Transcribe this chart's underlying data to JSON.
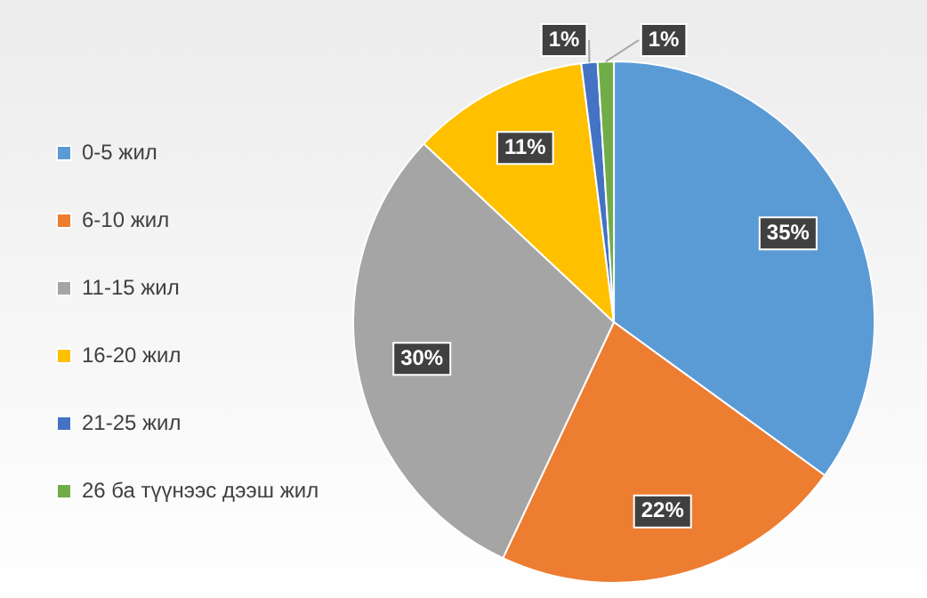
{
  "chart_data": {
    "type": "pie",
    "categories": [
      "0-5 жил",
      "6-10 жил",
      "11-15 жил",
      "16-20 жил",
      "21-25 жил",
      "26 ба түүнээс дээш жил"
    ],
    "values": [
      35,
      22,
      30,
      11,
      1,
      1
    ],
    "value_labels": [
      "35%",
      "22%",
      "30%",
      "11%",
      "1%",
      "1%"
    ],
    "colors": [
      "#5b9bd5",
      "#ed7d31",
      "#a5a5a5",
      "#ffc000",
      "#4472c4",
      "#70ad47"
    ],
    "legend": "left"
  }
}
